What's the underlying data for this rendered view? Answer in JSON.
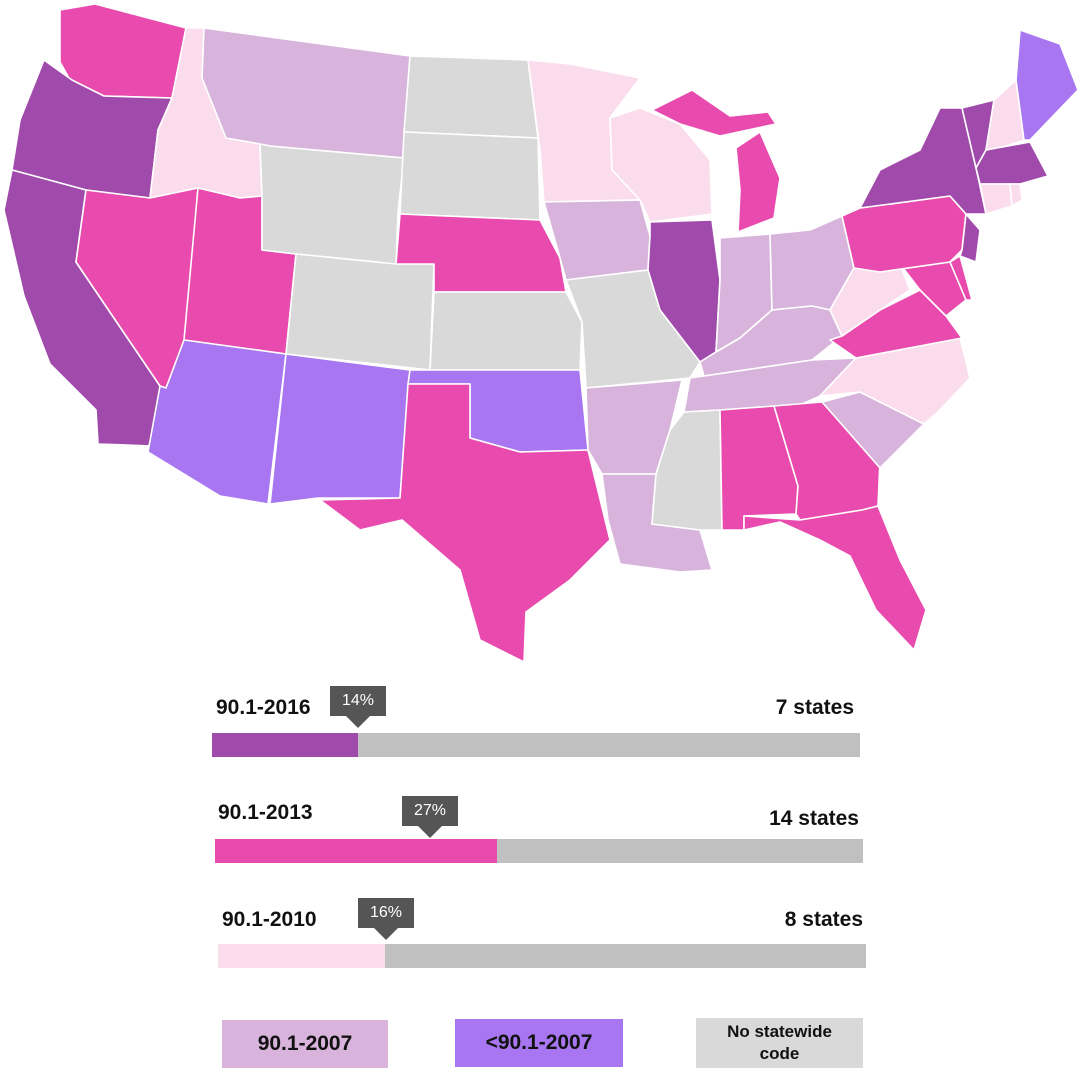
{
  "colors": {
    "c2016": "#a04aab",
    "c2013": "#e84aad",
    "c2010": "#fadcec",
    "c2007": "#d8b4dc",
    "cPre2007": "#a776f0",
    "cNone": "#d9d9d9",
    "track": "#c0c0c0",
    "tag": "#555555"
  },
  "bars": [
    {
      "label": "90.1-2016",
      "pct_text": "14%",
      "value": 0.14,
      "count_text": "7 states",
      "color_key": "c2016"
    },
    {
      "label": "90.1-2013",
      "pct_text": "27%",
      "value": 0.27,
      "count_text": "14 states",
      "color_key": "c2013"
    },
    {
      "label": "90.1-2010",
      "pct_text": "16%",
      "value": 0.16,
      "count_text": "8 states",
      "color_key": "c2010"
    }
  ],
  "legend": [
    {
      "label": "90.1-2007",
      "color_key": "c2007"
    },
    {
      "label": "<90.1-2007",
      "color_key": "cPre2007"
    },
    {
      "label": "No statewide code",
      "color_key": "cNone"
    }
  ],
  "states": [
    {
      "name": "washington",
      "code_key": "c2013"
    },
    {
      "name": "oregon",
      "code_key": "c2016"
    },
    {
      "name": "california",
      "code_key": "c2016"
    },
    {
      "name": "idaho",
      "code_key": "c2010"
    },
    {
      "name": "nevada",
      "code_key": "c2013"
    },
    {
      "name": "utah",
      "code_key": "c2013"
    },
    {
      "name": "arizona",
      "code_key": "cPre2007"
    },
    {
      "name": "montana",
      "code_key": "c2007"
    },
    {
      "name": "wyoming",
      "code_key": "cNone"
    },
    {
      "name": "colorado",
      "code_key": "cNone"
    },
    {
      "name": "new-mexico",
      "code_key": "cPre2007"
    },
    {
      "name": "north-dakota",
      "code_key": "cNone"
    },
    {
      "name": "south-dakota",
      "code_key": "cNone"
    },
    {
      "name": "nebraska",
      "code_key": "c2013"
    },
    {
      "name": "kansas",
      "code_key": "cNone"
    },
    {
      "name": "oklahoma",
      "code_key": "cPre2007"
    },
    {
      "name": "texas",
      "code_key": "c2013"
    },
    {
      "name": "minnesota",
      "code_key": "c2010"
    },
    {
      "name": "iowa",
      "code_key": "c2007"
    },
    {
      "name": "missouri",
      "code_key": "cNone"
    },
    {
      "name": "arkansas",
      "code_key": "c2007"
    },
    {
      "name": "louisiana",
      "code_key": "c2007"
    },
    {
      "name": "wisconsin",
      "code_key": "c2010"
    },
    {
      "name": "illinois",
      "code_key": "c2016"
    },
    {
      "name": "michigan-upper",
      "code_key": "c2013"
    },
    {
      "name": "michigan-lower",
      "code_key": "c2013"
    },
    {
      "name": "indiana",
      "code_key": "c2007"
    },
    {
      "name": "ohio",
      "code_key": "c2007"
    },
    {
      "name": "kentucky",
      "code_key": "c2007"
    },
    {
      "name": "tennessee",
      "code_key": "c2007"
    },
    {
      "name": "mississippi",
      "code_key": "cNone"
    },
    {
      "name": "alabama",
      "code_key": "c2013"
    },
    {
      "name": "georgia",
      "code_key": "c2013"
    },
    {
      "name": "florida",
      "code_key": "c2013"
    },
    {
      "name": "south-carolina",
      "code_key": "c2007"
    },
    {
      "name": "north-carolina",
      "code_key": "c2010"
    },
    {
      "name": "virginia",
      "code_key": "c2013"
    },
    {
      "name": "west-virginia",
      "code_key": "c2010"
    },
    {
      "name": "maryland",
      "code_key": "c2013"
    },
    {
      "name": "delaware",
      "code_key": "c2013"
    },
    {
      "name": "pennsylvania",
      "code_key": "c2013"
    },
    {
      "name": "new-jersey",
      "code_key": "c2016"
    },
    {
      "name": "new-york",
      "code_key": "c2016"
    },
    {
      "name": "vermont",
      "code_key": "c2016"
    },
    {
      "name": "new-hampshire",
      "code_key": "c2010"
    },
    {
      "name": "maine",
      "code_key": "cPre2007"
    },
    {
      "name": "massachusetts",
      "code_key": "c2016"
    },
    {
      "name": "connecticut",
      "code_key": "c2010"
    },
    {
      "name": "rhode-island",
      "code_key": "c2010"
    }
  ]
}
